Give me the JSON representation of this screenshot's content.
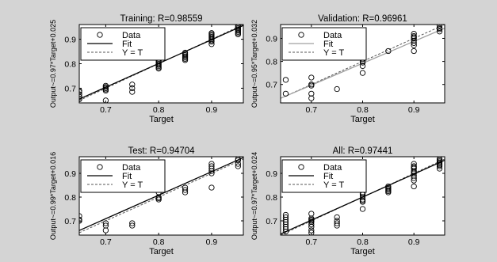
{
  "figure": {
    "background": "#d4d4d4",
    "axes_background": "#ffffff",
    "colors": {
      "data": "#000000",
      "fit": "#000000",
      "y_equals_t": "#555555",
      "fit_validation": "#a0a0a0"
    }
  },
  "chart_data": [
    {
      "type": "scatter",
      "title": "Training: R=0.98559",
      "xlabel": "Target",
      "ylabel": "Output~=0.97*Target+0.025",
      "xlim": [
        0.65,
        0.96
      ],
      "ylim": [
        0.64,
        0.96
      ],
      "xticks": [
        0.7,
        0.8,
        0.9
      ],
      "xtick_labels": [
        "0.7",
        "0.8",
        "0.9"
      ],
      "yticks": [
        0.7,
        0.8,
        0.9
      ],
      "ytick_labels": [
        "0.7",
        "0.8",
        "0.9"
      ],
      "legend": {
        "position": "top-left",
        "entries": [
          "Data",
          "Fit",
          "Y = T"
        ]
      },
      "fit": {
        "slope": 0.97,
        "intercept": 0.025,
        "style": "solid",
        "color": "#000000"
      },
      "identity": {
        "style": "dashed",
        "color": "#555555"
      },
      "points": [
        [
          0.65,
          0.655
        ],
        [
          0.65,
          0.665
        ],
        [
          0.65,
          0.675
        ],
        [
          0.65,
          0.685
        ],
        [
          0.65,
          0.69
        ],
        [
          0.7,
          0.69
        ],
        [
          0.7,
          0.695
        ],
        [
          0.7,
          0.7
        ],
        [
          0.7,
          0.705
        ],
        [
          0.7,
          0.71
        ],
        [
          0.7,
          0.65
        ],
        [
          0.75,
          0.685
        ],
        [
          0.75,
          0.7
        ],
        [
          0.75,
          0.715
        ],
        [
          0.8,
          0.78
        ],
        [
          0.8,
          0.785
        ],
        [
          0.8,
          0.79
        ],
        [
          0.8,
          0.795
        ],
        [
          0.8,
          0.8
        ],
        [
          0.8,
          0.805
        ],
        [
          0.8,
          0.81
        ],
        [
          0.8,
          0.815
        ],
        [
          0.85,
          0.815
        ],
        [
          0.85,
          0.82
        ],
        [
          0.85,
          0.825
        ],
        [
          0.85,
          0.83
        ],
        [
          0.85,
          0.835
        ],
        [
          0.85,
          0.84
        ],
        [
          0.85,
          0.845
        ],
        [
          0.9,
          0.88
        ],
        [
          0.9,
          0.89
        ],
        [
          0.9,
          0.895
        ],
        [
          0.9,
          0.9
        ],
        [
          0.9,
          0.905
        ],
        [
          0.9,
          0.91
        ],
        [
          0.9,
          0.915
        ],
        [
          0.9,
          0.92
        ],
        [
          0.9,
          0.925
        ],
        [
          0.95,
          0.92
        ],
        [
          0.95,
          0.925
        ],
        [
          0.95,
          0.93
        ],
        [
          0.95,
          0.935
        ],
        [
          0.95,
          0.94
        ],
        [
          0.95,
          0.945
        ],
        [
          0.95,
          0.95
        ],
        [
          0.95,
          0.955
        ]
      ]
    },
    {
      "type": "scatter",
      "title": "Validation: R=0.96961",
      "xlabel": "Target",
      "ylabel": "Output~=0.95*Target+0.032",
      "xlim": [
        0.64,
        0.96
      ],
      "ylim": [
        0.62,
        0.96
      ],
      "xticks": [
        0.7,
        0.8,
        0.9
      ],
      "xtick_labels": [
        "0.7",
        "0.8",
        "0.9"
      ],
      "yticks": [
        0.7,
        0.8,
        0.9
      ],
      "ytick_labels": [
        "0.7",
        "0.8",
        "0.9"
      ],
      "legend": {
        "position": "top-left",
        "entries": [
          "Data",
          "Fit",
          "Y = T"
        ]
      },
      "fit": {
        "slope": 0.95,
        "intercept": 0.032,
        "style": "solid",
        "color": "#a0a0a0"
      },
      "identity": {
        "style": "dashed",
        "color": "#555555"
      },
      "points": [
        [
          0.65,
          0.66
        ],
        [
          0.65,
          0.72
        ],
        [
          0.7,
          0.64
        ],
        [
          0.7,
          0.66
        ],
        [
          0.7,
          0.695
        ],
        [
          0.7,
          0.7
        ],
        [
          0.7,
          0.73
        ],
        [
          0.7,
          0.92
        ],
        [
          0.75,
          0.68
        ],
        [
          0.8,
          0.75
        ],
        [
          0.8,
          0.78
        ],
        [
          0.8,
          0.795
        ],
        [
          0.8,
          0.8
        ],
        [
          0.8,
          0.81
        ],
        [
          0.85,
          0.845
        ],
        [
          0.9,
          0.845
        ],
        [
          0.9,
          0.87
        ],
        [
          0.9,
          0.88
        ],
        [
          0.9,
          0.89
        ],
        [
          0.9,
          0.9
        ],
        [
          0.9,
          0.905
        ],
        [
          0.9,
          0.91
        ],
        [
          0.9,
          0.92
        ],
        [
          0.95,
          0.93
        ],
        [
          0.95,
          0.94
        ],
        [
          0.95,
          0.945
        ],
        [
          0.95,
          0.955
        ]
      ]
    },
    {
      "type": "scatter",
      "title": "Test: R=0.94704",
      "xlabel": "Target",
      "ylabel": "Output~=0.99*Target+0.016",
      "xlim": [
        0.65,
        0.96
      ],
      "ylim": [
        0.64,
        0.97
      ],
      "xticks": [
        0.7,
        0.8,
        0.9
      ],
      "xtick_labels": [
        "0.7",
        "0.8",
        "0.9"
      ],
      "yticks": [
        0.7,
        0.8,
        0.9
      ],
      "ytick_labels": [
        "0.7",
        "0.8",
        "0.9"
      ],
      "legend": {
        "position": "top-left",
        "entries": [
          "Data",
          "Fit",
          "Y = T"
        ]
      },
      "fit": {
        "slope": 0.99,
        "intercept": 0.016,
        "style": "solid",
        "color": "#000000"
      },
      "identity": {
        "style": "dashed",
        "color": "#555555"
      },
      "points": [
        [
          0.65,
          0.7
        ],
        [
          0.65,
          0.705
        ],
        [
          0.65,
          0.72
        ],
        [
          0.7,
          0.66
        ],
        [
          0.7,
          0.68
        ],
        [
          0.7,
          0.69
        ],
        [
          0.7,
          0.93
        ],
        [
          0.75,
          0.68
        ],
        [
          0.75,
          0.69
        ],
        [
          0.8,
          0.79
        ],
        [
          0.8,
          0.795
        ],
        [
          0.8,
          0.8
        ],
        [
          0.8,
          0.82
        ],
        [
          0.85,
          0.82
        ],
        [
          0.85,
          0.83
        ],
        [
          0.85,
          0.84
        ],
        [
          0.9,
          0.84
        ],
        [
          0.9,
          0.9
        ],
        [
          0.9,
          0.91
        ],
        [
          0.9,
          0.92
        ],
        [
          0.9,
          0.93
        ],
        [
          0.9,
          0.94
        ],
        [
          0.95,
          0.93
        ],
        [
          0.95,
          0.94
        ],
        [
          0.95,
          0.955
        ],
        [
          0.95,
          0.96
        ]
      ]
    },
    {
      "type": "scatter",
      "title": "All: R=0.97441",
      "xlabel": "Target",
      "ylabel": "Output~=0.97*Target+0.024",
      "xlim": [
        0.64,
        0.96
      ],
      "ylim": [
        0.64,
        0.97
      ],
      "xticks": [
        0.7,
        0.8,
        0.9
      ],
      "xtick_labels": [
        "0.7",
        "0.8",
        "0.9"
      ],
      "yticks": [
        0.7,
        0.8,
        0.9
      ],
      "ytick_labels": [
        "0.7",
        "0.8",
        "0.9"
      ],
      "legend": {
        "position": "top-left",
        "entries": [
          "Data",
          "Fit",
          "Y = T"
        ]
      },
      "fit": {
        "slope": 0.97,
        "intercept": 0.024,
        "style": "solid",
        "color": "#000000"
      },
      "identity": {
        "style": "dashed",
        "color": "#555555"
      },
      "points": [
        [
          0.65,
          0.655
        ],
        [
          0.65,
          0.665
        ],
        [
          0.65,
          0.675
        ],
        [
          0.65,
          0.685
        ],
        [
          0.65,
          0.695
        ],
        [
          0.65,
          0.705
        ],
        [
          0.65,
          0.715
        ],
        [
          0.65,
          0.725
        ],
        [
          0.7,
          0.65
        ],
        [
          0.7,
          0.66
        ],
        [
          0.7,
          0.675
        ],
        [
          0.7,
          0.685
        ],
        [
          0.7,
          0.695
        ],
        [
          0.7,
          0.7
        ],
        [
          0.7,
          0.705
        ],
        [
          0.7,
          0.71
        ],
        [
          0.7,
          0.73
        ],
        [
          0.7,
          0.92
        ],
        [
          0.75,
          0.68
        ],
        [
          0.75,
          0.69
        ],
        [
          0.75,
          0.7
        ],
        [
          0.75,
          0.715
        ],
        [
          0.8,
          0.75
        ],
        [
          0.8,
          0.78
        ],
        [
          0.8,
          0.785
        ],
        [
          0.8,
          0.79
        ],
        [
          0.8,
          0.8
        ],
        [
          0.8,
          0.81
        ],
        [
          0.8,
          0.815
        ],
        [
          0.8,
          0.82
        ],
        [
          0.85,
          0.82
        ],
        [
          0.85,
          0.825
        ],
        [
          0.85,
          0.83
        ],
        [
          0.85,
          0.835
        ],
        [
          0.85,
          0.84
        ],
        [
          0.85,
          0.845
        ],
        [
          0.9,
          0.845
        ],
        [
          0.9,
          0.87
        ],
        [
          0.9,
          0.88
        ],
        [
          0.9,
          0.89
        ],
        [
          0.9,
          0.9
        ],
        [
          0.9,
          0.905
        ],
        [
          0.9,
          0.91
        ],
        [
          0.9,
          0.92
        ],
        [
          0.9,
          0.925
        ],
        [
          0.9,
          0.93
        ],
        [
          0.9,
          0.94
        ],
        [
          0.95,
          0.92
        ],
        [
          0.95,
          0.93
        ],
        [
          0.95,
          0.935
        ],
        [
          0.95,
          0.94
        ],
        [
          0.95,
          0.945
        ],
        [
          0.95,
          0.95
        ],
        [
          0.95,
          0.955
        ],
        [
          0.95,
          0.96
        ]
      ]
    }
  ]
}
